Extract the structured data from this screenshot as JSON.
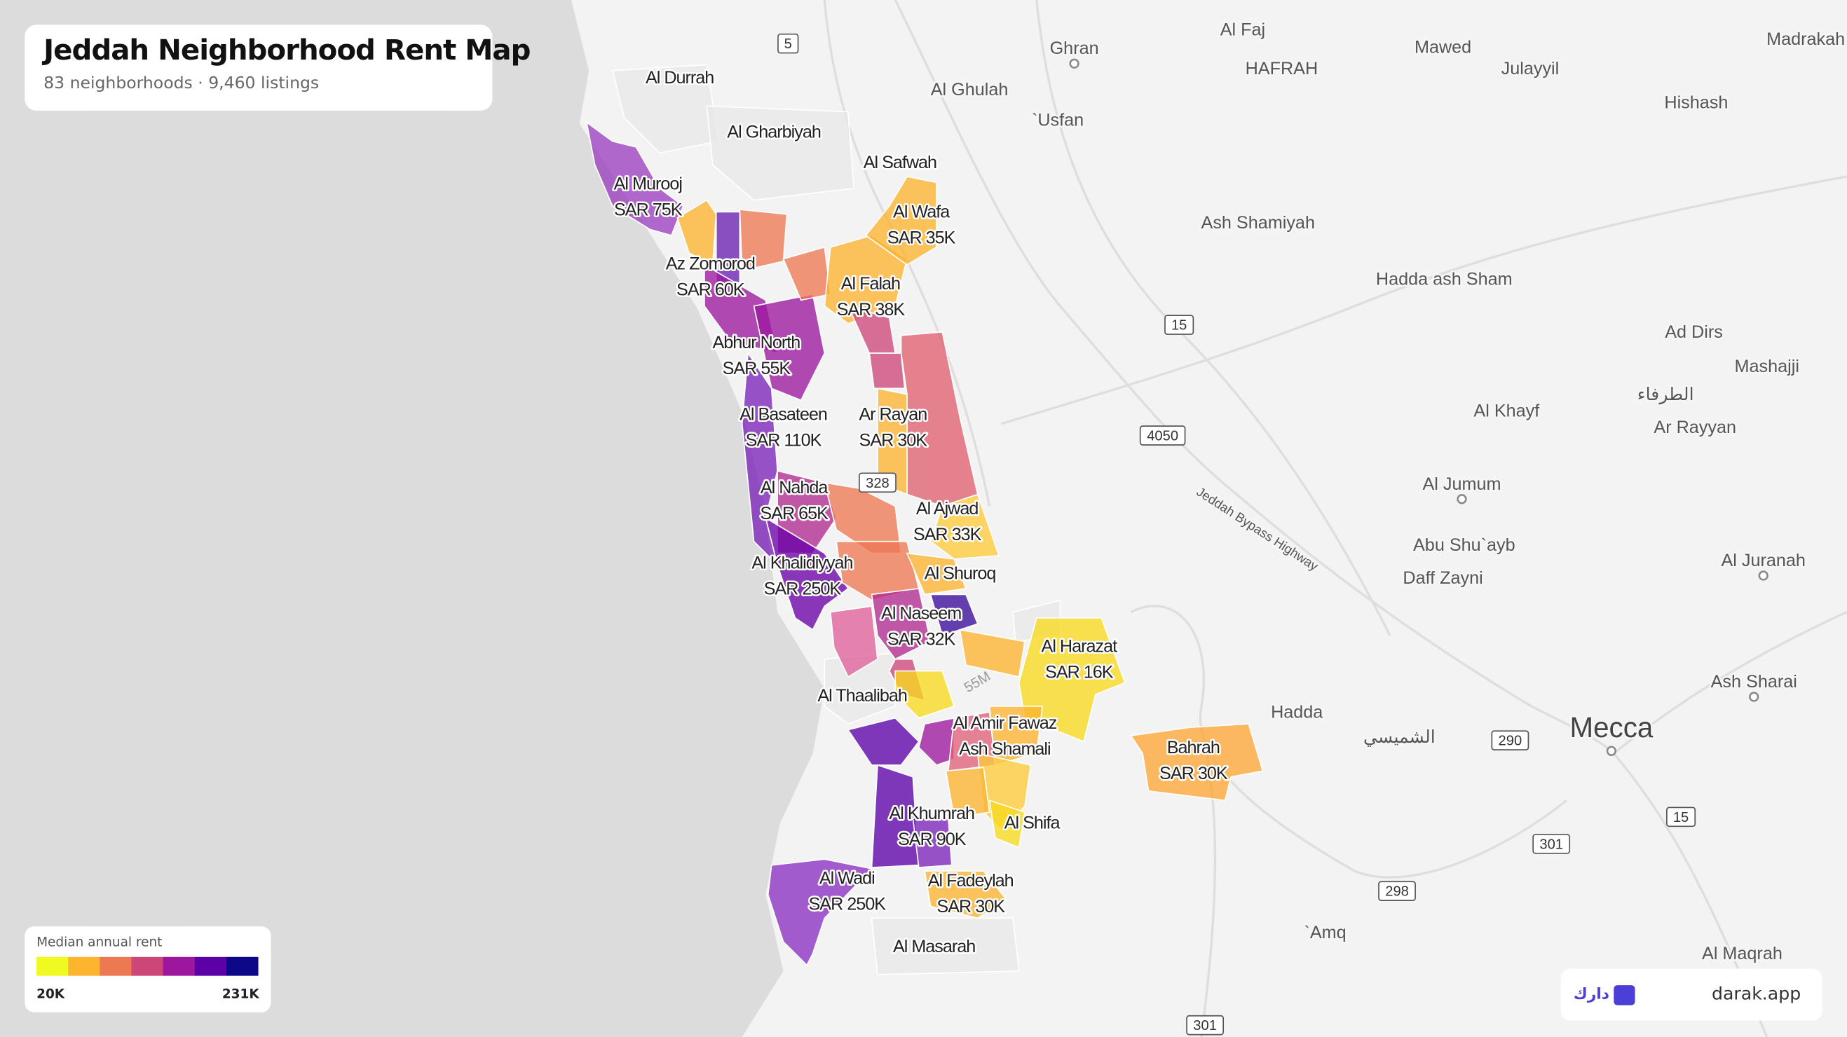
{
  "header": {
    "title": "Jeddah Neighborhood Rent Map",
    "subtitle": "83 neighborhoods · 9,460 listings"
  },
  "districts": [
    {
      "lines": [
        "Al Durrah"
      ]
    },
    {
      "lines": [
        "Al Gharbiyah"
      ]
    },
    {
      "lines": [
        "Al Safwah"
      ]
    },
    {
      "lines": [
        "Al Murooj",
        "SAR 75K"
      ]
    },
    {
      "lines": [
        "Al Wafa",
        "SAR 35K"
      ]
    },
    {
      "lines": [
        "Az Zomorod",
        "SAR 60K"
      ]
    },
    {
      "lines": [
        "Al Falah",
        "SAR 38K"
      ]
    },
    {
      "lines": [
        "Abhur North",
        "SAR 55K"
      ]
    },
    {
      "lines": [
        "Al Basateen",
        "SAR 110K"
      ]
    },
    {
      "lines": [
        "Ar Rayan",
        "SAR 30K"
      ]
    },
    {
      "lines": [
        "Al Nahda",
        "SAR 65K"
      ]
    },
    {
      "lines": [
        "Al Ajwad",
        "SAR 33K"
      ]
    },
    {
      "lines": [
        "Al Khalidiyyah",
        "SAR 250K"
      ]
    },
    {
      "lines": [
        "Al Shuroq"
      ]
    },
    {
      "lines": [
        "Al Naseem",
        "SAR 32K"
      ]
    },
    {
      "lines": [
        "Al Harazat",
        "SAR 16K"
      ]
    },
    {
      "lines": [
        "Al Thaalibah"
      ]
    },
    {
      "lines": [
        "Al Amir Fawaz",
        "Ash Shamali"
      ]
    },
    {
      "lines": [
        "Bahrah",
        "SAR 30K"
      ]
    },
    {
      "lines": [
        "Al Khumrah",
        "SAR 90K"
      ]
    },
    {
      "lines": [
        "Al Shifa"
      ]
    },
    {
      "lines": [
        "Al Wadi",
        "SAR 250K"
      ]
    },
    {
      "lines": [
        "Al Fadeylah",
        "SAR 30K"
      ]
    },
    {
      "lines": [
        "Al Masarah"
      ]
    }
  ],
  "places": [
    "Ghran",
    "Al Faj",
    "Mawed",
    "Madrakah",
    "HAFRAH",
    "Julayyil",
    "Al Ghulah",
    "`Usfan",
    "Hishash",
    "Ash Shamiyah",
    "Hadda ash Sham",
    "Ad Dirs",
    "Mashajji",
    "الطرفاء",
    "Al Khayf",
    "Ar Rayyan",
    "Al Jumum",
    "Abu Shu`ayb",
    "Daff Zayni",
    "Al Juranah",
    "Ash Sharai",
    "Hadda",
    "الشميسي",
    "Mecca",
    "`Amq",
    "Al Maqrah"
  ],
  "highway": "Jeddah Bypass Highway",
  "roads": [
    "5",
    "15",
    "4050",
    "290",
    "15",
    "301",
    "298",
    "301",
    "328",
    "55M"
  ],
  "legend": {
    "title": "Median annual rent",
    "min": "20K",
    "max": "231K",
    "colors": [
      "#f0f921",
      "#fdb42f",
      "#ed7953",
      "#cc4778",
      "#9c179e",
      "#5c01a6",
      "#0d0887"
    ]
  },
  "brand": {
    "arabic": "دارك",
    "site": "darak.app"
  }
}
